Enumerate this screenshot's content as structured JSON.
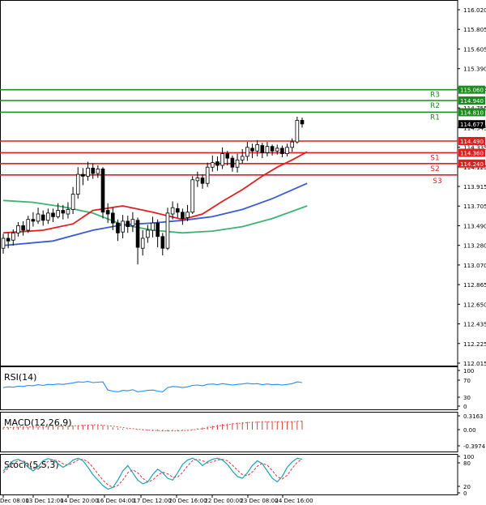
{
  "chart_data": [
    {
      "type": "candlestick",
      "panel": "price",
      "ylim": [
        112.015,
        116.02
      ],
      "y_ticks": [
        "116.020",
        "115.805",
        "115.605",
        "115.390",
        "115.185",
        "114.755",
        "114.545",
        "114.335",
        "114.125",
        "113.915",
        "113.705",
        "113.490",
        "113.280",
        "113.070",
        "112.865",
        "112.650",
        "112.435",
        "112.225",
        "112.015"
      ],
      "price_tag": "114.677",
      "levels": [
        {
          "label": "R3",
          "value": 115.06,
          "value_label": "115.060",
          "color": "#1e8b1e"
        },
        {
          "label": "R2",
          "value": 114.94,
          "value_label": "114.940",
          "color": "#1e8b1e"
        },
        {
          "label": "R1",
          "value": 114.81,
          "value_label": "114.810",
          "color": "#1e8b1e"
        },
        {
          "label": "",
          "value": 114.49,
          "value_label": "114.490",
          "color": "#e01e1e"
        },
        {
          "label": "S1",
          "value": 114.36,
          "value_label": "114.360",
          "color": "#e01e1e"
        },
        {
          "label": "S2",
          "value": 114.24,
          "value_label": "114.240",
          "color": "#e01e1e"
        },
        {
          "label": "S3",
          "value": null,
          "value_label": "",
          "color": "#e01e1e"
        }
      ],
      "candles": [
        [
          113.3,
          113.41,
          113.46,
          113.24
        ],
        [
          113.41,
          113.38,
          113.47,
          113.3
        ],
        [
          113.39,
          113.47,
          113.51,
          113.33
        ],
        [
          113.47,
          113.55,
          113.59,
          113.43
        ],
        [
          113.55,
          113.5,
          113.6,
          113.44
        ],
        [
          113.5,
          113.62,
          113.66,
          113.47
        ],
        [
          113.62,
          113.6,
          113.7,
          113.54
        ],
        [
          113.6,
          113.68,
          113.75,
          113.57
        ],
        [
          113.67,
          113.61,
          113.72,
          113.55
        ],
        [
          113.61,
          113.69,
          113.74,
          113.57
        ],
        [
          113.69,
          113.65,
          113.74,
          113.59
        ],
        [
          113.65,
          113.72,
          113.8,
          113.63
        ],
        [
          113.72,
          113.69,
          113.78,
          113.62
        ],
        [
          113.68,
          113.73,
          113.81,
          113.63
        ],
        [
          113.73,
          113.9,
          113.98,
          113.68
        ],
        [
          113.9,
          114.12,
          114.2,
          113.85
        ],
        [
          114.12,
          114.1,
          114.19,
          114.0
        ],
        [
          114.1,
          114.19,
          114.26,
          114.05
        ],
        [
          114.19,
          114.13,
          114.24,
          114.07
        ],
        [
          114.13,
          114.18,
          114.22,
          114.08
        ],
        [
          114.18,
          113.7,
          114.2,
          113.63
        ],
        [
          113.72,
          113.68,
          113.8,
          113.58
        ],
        [
          113.69,
          113.58,
          113.75,
          113.5
        ],
        [
          113.58,
          113.47,
          113.62,
          113.38
        ],
        [
          113.48,
          113.6,
          113.67,
          113.41
        ],
        [
          113.6,
          113.54,
          113.66,
          113.47
        ],
        [
          113.55,
          113.62,
          113.7,
          113.48
        ],
        [
          113.61,
          113.31,
          113.64,
          113.12
        ],
        [
          113.3,
          113.41,
          113.5,
          113.22
        ],
        [
          113.42,
          113.5,
          113.56,
          113.36
        ],
        [
          113.5,
          113.58,
          113.65,
          113.42
        ],
        [
          113.58,
          113.43,
          113.62,
          113.31
        ],
        [
          113.43,
          113.3,
          113.47,
          113.22
        ],
        [
          113.3,
          113.69,
          113.75,
          113.28
        ],
        [
          113.68,
          113.75,
          113.82,
          113.62
        ],
        [
          113.74,
          113.7,
          113.8,
          113.64
        ],
        [
          113.7,
          113.63,
          113.74,
          113.56
        ],
        [
          113.64,
          113.7,
          113.78,
          113.6
        ],
        [
          113.7,
          114.06,
          114.1,
          113.68
        ],
        [
          114.05,
          114.08,
          114.15,
          113.98
        ],
        [
          114.08,
          114.02,
          114.12,
          113.96
        ],
        [
          114.02,
          114.2,
          114.25,
          113.98
        ],
        [
          114.2,
          114.25,
          114.33,
          114.15
        ],
        [
          114.26,
          114.22,
          114.32,
          114.16
        ],
        [
          114.22,
          114.35,
          114.42,
          114.18
        ],
        [
          114.35,
          114.3,
          114.38,
          114.22
        ],
        [
          114.3,
          114.2,
          114.33,
          114.15
        ],
        [
          114.2,
          114.28,
          114.35,
          114.14
        ],
        [
          114.28,
          114.32,
          114.4,
          114.24
        ],
        [
          114.32,
          114.42,
          114.48,
          114.27
        ],
        [
          114.41,
          114.38,
          114.46,
          114.3
        ],
        [
          114.38,
          114.45,
          114.5,
          114.32
        ],
        [
          114.44,
          114.36,
          114.47,
          114.3
        ],
        [
          114.36,
          114.43,
          114.48,
          114.32
        ],
        [
          114.43,
          114.38,
          114.45,
          114.33
        ],
        [
          114.38,
          114.41,
          114.45,
          114.34
        ],
        [
          114.41,
          114.35,
          114.44,
          114.31
        ],
        [
          114.35,
          114.42,
          114.46,
          114.32
        ],
        [
          114.42,
          114.48,
          114.52,
          114.37
        ],
        [
          114.48,
          114.72,
          114.76,
          114.46
        ],
        [
          114.72,
          114.68,
          114.75,
          114.64
        ]
      ],
      "ma_red": [
        [
          0,
          113.47
        ],
        [
          8,
          113.5
        ],
        [
          14,
          113.57
        ],
        [
          18,
          113.72
        ],
        [
          24,
          113.77
        ],
        [
          30,
          113.7
        ],
        [
          36,
          113.62
        ],
        [
          40,
          113.68
        ],
        [
          44,
          113.82
        ],
        [
          48,
          113.95
        ],
        [
          52,
          114.1
        ],
        [
          55,
          114.2
        ],
        [
          58,
          114.28
        ],
        [
          61,
          114.37
        ]
      ],
      "ma_blue": [
        [
          0,
          113.33
        ],
        [
          10,
          113.38
        ],
        [
          18,
          113.5
        ],
        [
          24,
          113.56
        ],
        [
          30,
          113.58
        ],
        [
          36,
          113.61
        ],
        [
          42,
          113.65
        ],
        [
          48,
          113.73
        ],
        [
          54,
          113.85
        ],
        [
          61,
          114.02
        ]
      ],
      "ma_green": [
        [
          0,
          113.83
        ],
        [
          6,
          113.81
        ],
        [
          12,
          113.76
        ],
        [
          18,
          113.69
        ],
        [
          24,
          113.56
        ],
        [
          30,
          113.5
        ],
        [
          36,
          113.47
        ],
        [
          42,
          113.49
        ],
        [
          48,
          113.54
        ],
        [
          54,
          113.63
        ],
        [
          61,
          113.77
        ]
      ],
      "x_tick_labels": [
        "Dec 08:00",
        "13 Dec 12:00",
        "14 Dec 20:00",
        "16 Dec 04:00",
        "17 Dec 12:00",
        "20 Dec 16:00",
        "22 Dec 00:00",
        "23 Dec 08:00",
        "24 Dec 16:00"
      ]
    },
    {
      "type": "line",
      "panel": "RSI",
      "title": "RSI(14)",
      "ylim": [
        0,
        100
      ],
      "y_ticks": [
        "100",
        "70",
        "30",
        "0"
      ],
      "color": "#1e90ff",
      "values": [
        52,
        54,
        53,
        56,
        55,
        58,
        57,
        60,
        58,
        61,
        60,
        62,
        61,
        63,
        65,
        68,
        67,
        69,
        66,
        67,
        68,
        45,
        42,
        40,
        44,
        43,
        46,
        40,
        42,
        44,
        45,
        42,
        40,
        52,
        55,
        54,
        52,
        54,
        58,
        59,
        57,
        61,
        62,
        60,
        63,
        61,
        59,
        61,
        62,
        64,
        62,
        63,
        60,
        62,
        60,
        61,
        59,
        61,
        63,
        68,
        66
      ]
    },
    {
      "type": "line",
      "panel": "MACD",
      "title": "MACD(12,26,9)",
      "ylim": [
        -0.3974,
        0.3163
      ],
      "y_ticks": [
        "0.3163",
        "0.00",
        "-0.3974"
      ],
      "hist_color": "#c0392b",
      "signal_color": "#e74c3c",
      "histogram": [
        0.05,
        0.05,
        0.05,
        0.06,
        0.06,
        0.06,
        0.07,
        0.07,
        0.07,
        0.08,
        0.08,
        0.08,
        0.08,
        0.09,
        0.09,
        0.1,
        0.11,
        0.11,
        0.11,
        0.11,
        0.1,
        0.07,
        0.05,
        0.03,
        0.02,
        0.01,
        0.0,
        -0.01,
        -0.02,
        -0.02,
        -0.03,
        -0.03,
        -0.04,
        -0.04,
        -0.03,
        -0.03,
        -0.02,
        -0.01,
        0.01,
        0.03,
        0.05,
        0.07,
        0.09,
        0.11,
        0.13,
        0.14,
        0.15,
        0.16,
        0.17,
        0.18,
        0.18,
        0.19,
        0.19,
        0.19,
        0.19,
        0.19,
        0.19,
        0.19,
        0.19,
        0.2,
        0.2
      ],
      "signal": [
        0.05,
        0.05,
        0.05,
        0.06,
        0.06,
        0.06,
        0.06,
        0.07,
        0.07,
        0.07,
        0.08,
        0.08,
        0.08,
        0.08,
        0.09,
        0.09,
        0.1,
        0.1,
        0.11,
        0.11,
        0.1,
        0.09,
        0.08,
        0.06,
        0.05,
        0.03,
        0.02,
        0.01,
        0.0,
        -0.01,
        -0.02,
        -0.02,
        -0.03,
        -0.03,
        -0.03,
        -0.03,
        -0.02,
        -0.02,
        -0.01,
        0.01,
        0.02,
        0.04,
        0.06,
        0.08,
        0.1,
        0.11,
        0.13,
        0.14,
        0.15,
        0.16,
        0.17,
        0.17,
        0.18,
        0.18,
        0.18,
        0.18,
        0.18,
        0.18,
        0.18,
        0.19,
        0.19
      ]
    },
    {
      "type": "line",
      "panel": "Stoch",
      "title": "Stoch(5,5,3)",
      "ylim": [
        0,
        100
      ],
      "y_ticks": [
        "100",
        "80",
        "20",
        "0"
      ],
      "k_color": "#1aa3b5",
      "d_color": "#e03030",
      "k": [
        60,
        75,
        88,
        92,
        85,
        70,
        60,
        72,
        88,
        94,
        90,
        80,
        70,
        78,
        90,
        95,
        88,
        70,
        50,
        35,
        20,
        10,
        15,
        35,
        60,
        75,
        55,
        35,
        25,
        30,
        50,
        65,
        55,
        40,
        35,
        55,
        78,
        90,
        95,
        88,
        75,
        85,
        92,
        95,
        90,
        78,
        60,
        45,
        40,
        55,
        75,
        88,
        80,
        60,
        40,
        30,
        45,
        70,
        85,
        95,
        92
      ],
      "d": [
        55,
        68,
        80,
        88,
        88,
        80,
        68,
        65,
        75,
        86,
        90,
        88,
        80,
        76,
        82,
        90,
        92,
        85,
        70,
        52,
        35,
        22,
        15,
        20,
        35,
        55,
        63,
        55,
        40,
        30,
        35,
        48,
        57,
        52,
        43,
        43,
        56,
        74,
        88,
        92,
        88,
        82,
        85,
        90,
        92,
        88,
        76,
        62,
        50,
        47,
        57,
        73,
        81,
        76,
        61,
        44,
        38,
        48,
        67,
        84,
        92
      ]
    }
  ]
}
